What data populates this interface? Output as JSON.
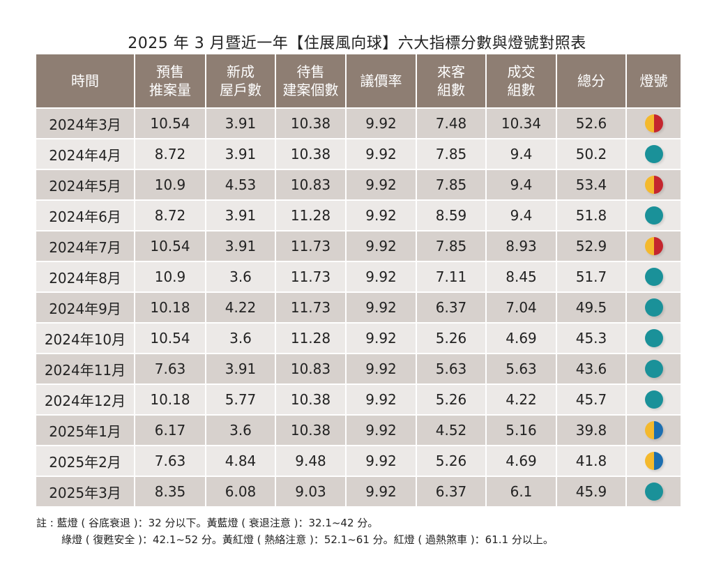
{
  "title": "2025 年 3 月暨近一年【住展風向球】六大指標分數與燈號對照表",
  "colors": {
    "header_bg": "#8e7e73",
    "yellow": "#f4b92d",
    "red": "#c4262e",
    "green": "#1a9199",
    "blue": "#1c6fb0"
  },
  "headers": [
    "時間",
    "預售\n推案量",
    "新成\n屋戶數",
    "待售\n建案個數",
    "議價率",
    "來客\n組數",
    "成交\n組數",
    "總分",
    "燈號"
  ],
  "rows": [
    {
      "month": "2024年3月",
      "values": [
        "10.54",
        "3.91",
        "10.38",
        "9.92",
        "7.48",
        "10.34",
        "52.6"
      ],
      "light": "yellow-red"
    },
    {
      "month": "2024年4月",
      "values": [
        "8.72",
        "3.91",
        "10.38",
        "9.92",
        "7.85",
        "9.4",
        "50.2"
      ],
      "light": "green"
    },
    {
      "month": "2024年5月",
      "values": [
        "10.9",
        "4.53",
        "10.83",
        "9.92",
        "7.85",
        "9.4",
        "53.4"
      ],
      "light": "yellow-red"
    },
    {
      "month": "2024年6月",
      "values": [
        "8.72",
        "3.91",
        "11.28",
        "9.92",
        "8.59",
        "9.4",
        "51.8"
      ],
      "light": "green"
    },
    {
      "month": "2024年7月",
      "values": [
        "10.54",
        "3.91",
        "11.73",
        "9.92",
        "7.85",
        "8.93",
        "52.9"
      ],
      "light": "yellow-red"
    },
    {
      "month": "2024年8月",
      "values": [
        "10.9",
        "3.6",
        "11.73",
        "9.92",
        "7.11",
        "8.45",
        "51.7"
      ],
      "light": "green"
    },
    {
      "month": "2024年9月",
      "values": [
        "10.18",
        "4.22",
        "11.73",
        "9.92",
        "6.37",
        "7.04",
        "49.5"
      ],
      "light": "green"
    },
    {
      "month": "2024年10月",
      "values": [
        "10.54",
        "3.6",
        "11.28",
        "9.92",
        "5.26",
        "4.69",
        "45.3"
      ],
      "light": "green"
    },
    {
      "month": "2024年11月",
      "values": [
        "7.63",
        "3.91",
        "10.83",
        "9.92",
        "5.63",
        "5.63",
        "43.6"
      ],
      "light": "green"
    },
    {
      "month": "2024年12月",
      "values": [
        "10.18",
        "5.77",
        "10.38",
        "9.92",
        "5.26",
        "4.22",
        "45.7"
      ],
      "light": "green"
    },
    {
      "month": "2025年1月",
      "values": [
        "6.17",
        "3.6",
        "10.38",
        "9.92",
        "4.52",
        "5.16",
        "39.8"
      ],
      "light": "yellow-blue"
    },
    {
      "month": "2025年2月",
      "values": [
        "7.63",
        "4.84",
        "9.48",
        "9.92",
        "5.26",
        "4.69",
        "41.8"
      ],
      "light": "yellow-blue"
    },
    {
      "month": "2025年3月",
      "values": [
        "8.35",
        "6.08",
        "9.03",
        "9.92",
        "6.37",
        "6.1",
        "45.9"
      ],
      "light": "green"
    }
  ],
  "notes": [
    "註 : 藍燈 ( 谷底衰退 )：32 分以下。黃藍燈 ( 衰退注意 )：32.1~42 分。",
    "綠燈 ( 復甦安全 )：42.1~52 分。黃紅燈 ( 熱絡注意 )：52.1~61 分。紅燈 ( 過熱煞車 )：61.1 分以上。"
  ]
}
